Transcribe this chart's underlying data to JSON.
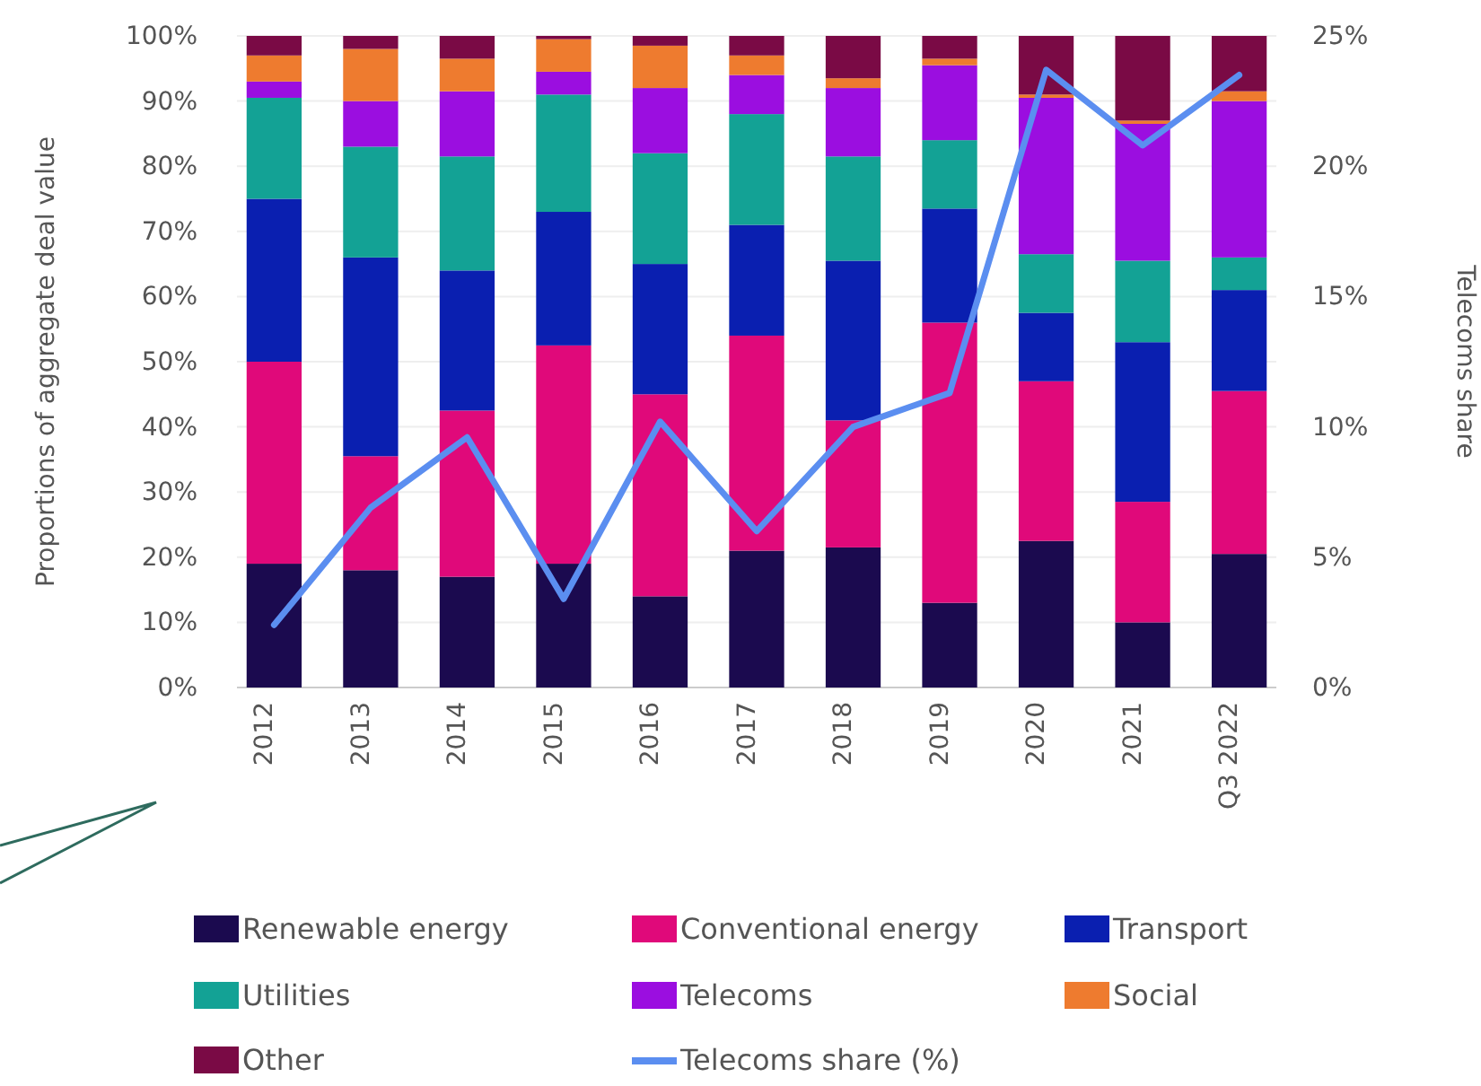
{
  "chart_data": {
    "type": "bar",
    "stacked": true,
    "ylabel": "Proportions of aggregate deal value",
    "y2label": "Telecoms share",
    "categories": [
      "2012",
      "2013",
      "2014",
      "2015",
      "2016",
      "2017",
      "2018",
      "2019",
      "2020",
      "2021",
      "Q3 2022"
    ],
    "series": [
      {
        "name": "Renewable energy",
        "color": "#1b0a4f",
        "values": [
          19,
          18,
          17,
          19,
          14,
          21,
          21.5,
          13,
          22.5,
          10,
          20.5
        ]
      },
      {
        "name": "Conventional energy",
        "color": "#e0097a",
        "values": [
          31,
          17.5,
          25.5,
          33.5,
          31,
          33,
          19.5,
          43,
          24.5,
          18.5,
          25
        ]
      },
      {
        "name": "Transport",
        "color": "#0a1fb0",
        "values": [
          25,
          30.5,
          21.5,
          20.5,
          20,
          17,
          24.5,
          17.5,
          10.5,
          24.5,
          15.5
        ]
      },
      {
        "name": "Utilities",
        "color": "#13a295",
        "values": [
          15.5,
          17,
          17.5,
          18,
          17,
          17,
          16,
          10.5,
          9,
          12.5,
          5
        ]
      },
      {
        "name": "Telecoms",
        "color": "#9b0ee0",
        "values": [
          2.5,
          7,
          10,
          3.5,
          10,
          6,
          10.5,
          11.5,
          24,
          21,
          24
        ]
      },
      {
        "name": "Social",
        "color": "#ee7b2f",
        "values": [
          4,
          8,
          5,
          5,
          6.5,
          3,
          1.5,
          1,
          0.5,
          0.5,
          1.5
        ]
      },
      {
        "name": "Other",
        "color": "#7a0a45",
        "values": [
          3,
          2,
          3.5,
          0.5,
          1.5,
          3,
          6.5,
          3.5,
          9,
          13,
          8.5
        ]
      },
      {
        "name": "Telecoms share (%)",
        "type": "line",
        "axis": "y2",
        "color": "#5b8ef0",
        "values": [
          2.4,
          6.9,
          9.6,
          3.4,
          10.2,
          6.0,
          10.0,
          11.3,
          23.7,
          20.8,
          23.5
        ]
      }
    ],
    "ylim": [
      0,
      100
    ],
    "yticks": [
      {
        "value": 0,
        "label": "0%"
      },
      {
        "value": 10,
        "label": "10%"
      },
      {
        "value": 20,
        "label": "20%"
      },
      {
        "value": 30,
        "label": "30%"
      },
      {
        "value": 40,
        "label": "40%"
      },
      {
        "value": 50,
        "label": "50%"
      },
      {
        "value": 60,
        "label": "60%"
      },
      {
        "value": 70,
        "label": "70%"
      },
      {
        "value": 80,
        "label": "80%"
      },
      {
        "value": 90,
        "label": "90%"
      },
      {
        "value": 100,
        "label": "100%"
      }
    ],
    "y2lim": [
      0,
      25
    ],
    "y2ticks": [
      {
        "value": 0,
        "label": "0%"
      },
      {
        "value": 5,
        "label": "5%"
      },
      {
        "value": 10,
        "label": "10%"
      },
      {
        "value": 15,
        "label": "15%"
      },
      {
        "value": 20,
        "label": "20%"
      },
      {
        "value": 25,
        "label": "25%"
      }
    ],
    "grid": "y",
    "legend": "bottom"
  }
}
